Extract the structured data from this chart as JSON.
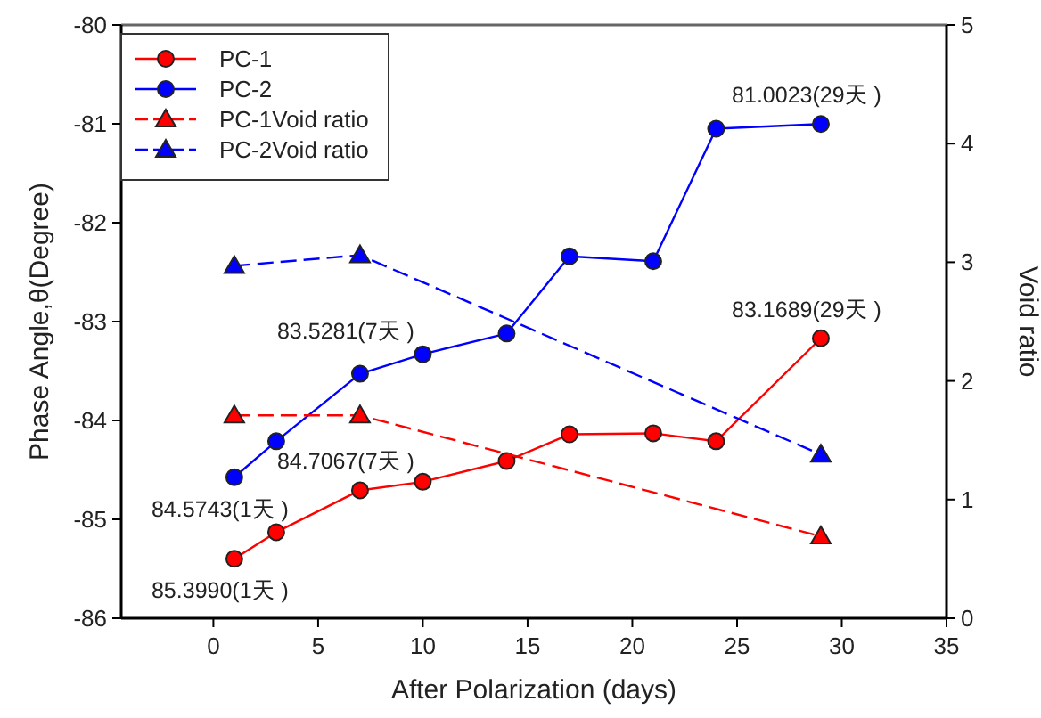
{
  "chart_data": {
    "type": "line",
    "xlabel": "After Polarization (days)",
    "ylabel": "Phase Angle,θ(Degree)",
    "y2label": "Void ratio",
    "xlim": [
      -4.4,
      35
    ],
    "xticks": [
      0,
      5,
      10,
      15,
      20,
      25,
      30,
      35
    ],
    "ylim": [
      -86,
      -80
    ],
    "yticks": [
      -86,
      -85,
      -84,
      -83,
      -82,
      -81,
      -80
    ],
    "y2lim": [
      0,
      5
    ],
    "y2ticks": [
      0,
      1,
      2,
      3,
      4,
      5
    ],
    "legend": "top left",
    "series": [
      {
        "name": "PC-1",
        "color": "#ff0000",
        "marker": "circle",
        "line_style": "solid",
        "x": [
          1,
          3,
          7,
          10,
          14,
          17,
          21,
          24,
          29
        ],
        "values": [
          -85.399,
          -85.13,
          -84.7067,
          -84.62,
          -84.41,
          -84.14,
          -84.13,
          -84.21,
          -83.1689
        ]
      },
      {
        "name": "PC-2",
        "color": "#0000ff",
        "marker": "circle",
        "line_style": "solid",
        "x": [
          1,
          3,
          7,
          10,
          14,
          17,
          21,
          24,
          29
        ],
        "values": [
          -84.5743,
          -84.21,
          -83.5281,
          -83.33,
          -83.12,
          -82.34,
          -82.39,
          -81.05,
          -81.0023
        ]
      },
      {
        "name": "PC-1Void ratio",
        "color": "#ff0000",
        "marker": "triangle",
        "line_style": "dashed",
        "axis": "y2",
        "x": [
          1,
          7,
          29
        ],
        "values": [
          1.71,
          1.71,
          0.69
        ]
      },
      {
        "name": "PC-2Void ratio",
        "color": "#0000ff",
        "marker": "triangle",
        "line_style": "dashed",
        "axis": "y2",
        "x": [
          1,
          7,
          29
        ],
        "values": [
          2.97,
          3.06,
          1.38
        ]
      }
    ],
    "annotations": [
      {
        "text": "84.5743(1天 )",
        "x": 1,
        "y": -84.5743
      },
      {
        "text": "85.3990(1天 )",
        "x": 1,
        "y": -85.399
      },
      {
        "text": "84.7067(7天 )",
        "x": 7,
        "y": -84.7067
      },
      {
        "text": "83.5281(7天 )",
        "x": 7,
        "y": -83.5281
      },
      {
        "text": "83.1689(29天 )",
        "x": 29,
        "y": -83.1689
      },
      {
        "text": "81.0023(29天 )",
        "x": 29,
        "y": -81.0023
      }
    ]
  }
}
